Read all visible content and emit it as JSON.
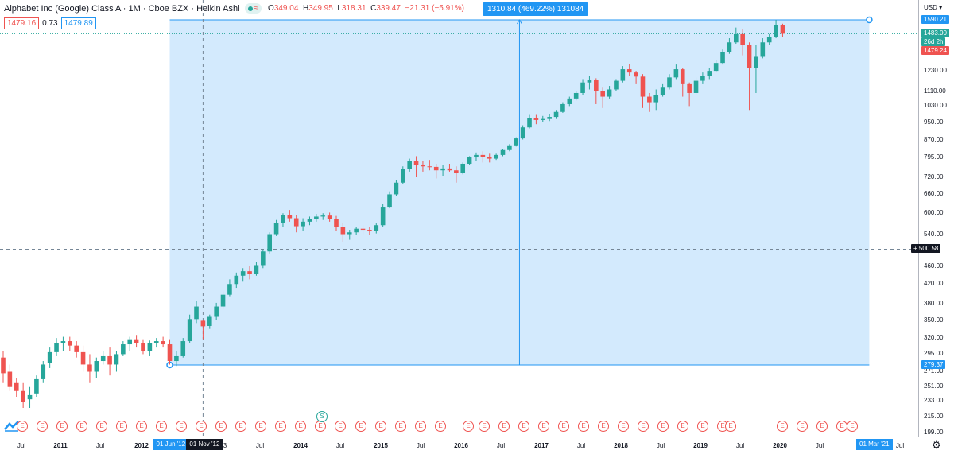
{
  "legend": {
    "symbol": "Alphabet Inc (Google) Class A · 1M · Cboe BZX · Heikin Ashi",
    "wave_icon": "≈",
    "o_label": "O",
    "o_value": "349.04",
    "h_label": "H",
    "h_value": "349.95",
    "l_label": "L",
    "l_value": "318.31",
    "c_label": "C",
    "c_value": "339.47",
    "change": "−21.31 (−5.91%)",
    "bid": "1479.16",
    "spread": "0.73",
    "ask": "1479.89"
  },
  "measure": {
    "label": "1310.84 (469.22%) 131084",
    "from_price": 279.37,
    "to_price": 1590.21,
    "from_date": "01 Jun '12",
    "to_date": "01 Mar '21"
  },
  "crosshair": {
    "price": "500.58",
    "date": "01 Nov '12"
  },
  "price_axis": {
    "currency": "USD",
    "ticks": [
      "1230.00",
      "1110.00",
      "1030.00",
      "950.00",
      "870.00",
      "795.00",
      "720.00",
      "660.00",
      "600.00",
      "540.00",
      "460.00",
      "420.00",
      "380.00",
      "350.00",
      "320.00",
      "295.00",
      "271.00",
      "251.00",
      "233.00",
      "215.00",
      "199.00"
    ],
    "tags": [
      {
        "text": "1590.21",
        "color": "#2196f3"
      },
      {
        "text": "1483.00",
        "color": "#26a69a"
      },
      {
        "text": "26d 2h",
        "color": "#26a69a"
      },
      {
        "text": "1479.24",
        "color": "#ef5350"
      },
      {
        "text": "279.37",
        "color": "#2196f3"
      }
    ]
  },
  "time_axis": {
    "labels": [
      {
        "t": "Jul",
        "year": false
      },
      {
        "t": "2011",
        "year": true
      },
      {
        "t": "Jul",
        "year": false
      },
      {
        "t": "2012",
        "year": true
      },
      {
        "t": "3",
        "year": false
      },
      {
        "t": "Jul",
        "year": false
      },
      {
        "t": "2014",
        "year": true
      },
      {
        "t": "Jul",
        "year": false
      },
      {
        "t": "2015",
        "year": true
      },
      {
        "t": "Jul",
        "year": false
      },
      {
        "t": "2016",
        "year": true
      },
      {
        "t": "Jul",
        "year": false
      },
      {
        "t": "2017",
        "year": true
      },
      {
        "t": "Jul",
        "year": false
      },
      {
        "t": "2018",
        "year": true
      },
      {
        "t": "Jul",
        "year": false
      },
      {
        "t": "2019",
        "year": true
      },
      {
        "t": "Jul",
        "year": false
      },
      {
        "t": "2020",
        "year": true
      },
      {
        "t": "Jul",
        "year": false
      },
      {
        "t": "2",
        "year": false
      },
      {
        "t": "Jul",
        "year": false
      }
    ]
  },
  "events": [
    "E",
    "E",
    "E",
    "E",
    "E",
    "E",
    "E",
    "E",
    "E",
    "E",
    "E",
    "E",
    "E",
    "E",
    "E",
    "E",
    "E",
    "S",
    "E",
    "E",
    "E",
    "E",
    "E",
    "E",
    "E",
    "E",
    "E",
    "E",
    "E",
    "E",
    "E",
    "E",
    "E",
    "E",
    "E",
    "E",
    "E",
    "E",
    "E",
    "E",
    "E",
    "E",
    "E"
  ],
  "colors": {
    "up": "#26a69a",
    "down": "#ef5350",
    "measure": "#2196f3",
    "measure_fill": "rgba(33,150,243,0.2)"
  },
  "icons": {
    "logo": "tradingview-logo-icon",
    "settings": "gear-icon"
  },
  "chart_data": {
    "type": "candlestick",
    "style": "Heikin Ashi",
    "interval": "1M",
    "y_scale": "log",
    "ylim": [
      199,
      1650
    ],
    "x_start": "2010-06",
    "months": [
      {
        "o": 290,
        "h": 300,
        "l": 255,
        "c": 268
      },
      {
        "o": 270,
        "h": 280,
        "l": 245,
        "c": 250
      },
      {
        "o": 255,
        "h": 262,
        "l": 238,
        "c": 245
      },
      {
        "o": 245,
        "h": 255,
        "l": 225,
        "c": 232
      },
      {
        "o": 235,
        "h": 250,
        "l": 225,
        "c": 240
      },
      {
        "o": 242,
        "h": 265,
        "l": 238,
        "c": 260
      },
      {
        "o": 260,
        "h": 285,
        "l": 255,
        "c": 280
      },
      {
        "o": 282,
        "h": 305,
        "l": 275,
        "c": 298
      },
      {
        "o": 298,
        "h": 320,
        "l": 292,
        "c": 312
      },
      {
        "o": 312,
        "h": 322,
        "l": 300,
        "c": 315
      },
      {
        "o": 315,
        "h": 322,
        "l": 300,
        "c": 308
      },
      {
        "o": 308,
        "h": 315,
        "l": 290,
        "c": 298
      },
      {
        "o": 298,
        "h": 308,
        "l": 270,
        "c": 280
      },
      {
        "o": 280,
        "h": 295,
        "l": 255,
        "c": 270
      },
      {
        "o": 270,
        "h": 290,
        "l": 262,
        "c": 285
      },
      {
        "o": 285,
        "h": 300,
        "l": 280,
        "c": 292
      },
      {
        "o": 292,
        "h": 305,
        "l": 265,
        "c": 280
      },
      {
        "o": 280,
        "h": 300,
        "l": 270,
        "c": 295
      },
      {
        "o": 295,
        "h": 315,
        "l": 292,
        "c": 310
      },
      {
        "o": 310,
        "h": 322,
        "l": 300,
        "c": 318
      },
      {
        "o": 318,
        "h": 325,
        "l": 305,
        "c": 312
      },
      {
        "o": 312,
        "h": 318,
        "l": 295,
        "c": 300
      },
      {
        "o": 300,
        "h": 316,
        "l": 292,
        "c": 312
      },
      {
        "o": 312,
        "h": 320,
        "l": 305,
        "c": 315
      },
      {
        "o": 315,
        "h": 322,
        "l": 305,
        "c": 310
      },
      {
        "o": 310,
        "h": 318,
        "l": 280,
        "c": 285
      },
      {
        "o": 285,
        "h": 300,
        "l": 278,
        "c": 292
      },
      {
        "o": 292,
        "h": 320,
        "l": 290,
        "c": 315
      },
      {
        "o": 315,
        "h": 360,
        "l": 312,
        "c": 352
      },
      {
        "o": 352,
        "h": 385,
        "l": 345,
        "c": 375
      },
      {
        "o": 349.04,
        "h": 349.95,
        "l": 318.31,
        "c": 339.47
      },
      {
        "o": 340,
        "h": 360,
        "l": 335,
        "c": 356
      },
      {
        "o": 356,
        "h": 382,
        "l": 350,
        "c": 375
      },
      {
        "o": 375,
        "h": 405,
        "l": 370,
        "c": 398
      },
      {
        "o": 398,
        "h": 430,
        "l": 395,
        "c": 420
      },
      {
        "o": 420,
        "h": 445,
        "l": 412,
        "c": 438
      },
      {
        "o": 438,
        "h": 455,
        "l": 425,
        "c": 448
      },
      {
        "o": 448,
        "h": 460,
        "l": 430,
        "c": 442
      },
      {
        "o": 442,
        "h": 470,
        "l": 438,
        "c": 462
      },
      {
        "o": 462,
        "h": 500,
        "l": 455,
        "c": 495
      },
      {
        "o": 495,
        "h": 545,
        "l": 490,
        "c": 540
      },
      {
        "o": 540,
        "h": 580,
        "l": 535,
        "c": 572
      },
      {
        "o": 572,
        "h": 600,
        "l": 560,
        "c": 595
      },
      {
        "o": 595,
        "h": 610,
        "l": 575,
        "c": 585
      },
      {
        "o": 585,
        "h": 595,
        "l": 545,
        "c": 562
      },
      {
        "o": 562,
        "h": 585,
        "l": 550,
        "c": 575
      },
      {
        "o": 575,
        "h": 590,
        "l": 565,
        "c": 582
      },
      {
        "o": 582,
        "h": 598,
        "l": 575,
        "c": 590
      },
      {
        "o": 590,
        "h": 600,
        "l": 580,
        "c": 593
      },
      {
        "o": 593,
        "h": 602,
        "l": 575,
        "c": 582
      },
      {
        "o": 582,
        "h": 592,
        "l": 548,
        "c": 560
      },
      {
        "o": 560,
        "h": 572,
        "l": 520,
        "c": 540
      },
      {
        "o": 540,
        "h": 552,
        "l": 525,
        "c": 545
      },
      {
        "o": 545,
        "h": 560,
        "l": 538,
        "c": 555
      },
      {
        "o": 555,
        "h": 565,
        "l": 540,
        "c": 552
      },
      {
        "o": 552,
        "h": 560,
        "l": 538,
        "c": 548
      },
      {
        "o": 548,
        "h": 570,
        "l": 542,
        "c": 565
      },
      {
        "o": 565,
        "h": 630,
        "l": 560,
        "c": 620
      },
      {
        "o": 620,
        "h": 670,
        "l": 615,
        "c": 660
      },
      {
        "o": 660,
        "h": 710,
        "l": 655,
        "c": 700
      },
      {
        "o": 700,
        "h": 760,
        "l": 695,
        "c": 750
      },
      {
        "o": 750,
        "h": 790,
        "l": 740,
        "c": 780
      },
      {
        "o": 780,
        "h": 800,
        "l": 720,
        "c": 765
      },
      {
        "o": 765,
        "h": 780,
        "l": 740,
        "c": 760
      },
      {
        "o": 760,
        "h": 785,
        "l": 745,
        "c": 758
      },
      {
        "o": 758,
        "h": 770,
        "l": 715,
        "c": 745
      },
      {
        "o": 745,
        "h": 765,
        "l": 725,
        "c": 752
      },
      {
        "o": 752,
        "h": 770,
        "l": 740,
        "c": 745
      },
      {
        "o": 745,
        "h": 760,
        "l": 700,
        "c": 735
      },
      {
        "o": 735,
        "h": 775,
        "l": 730,
        "c": 770
      },
      {
        "o": 770,
        "h": 800,
        "l": 765,
        "c": 795
      },
      {
        "o": 795,
        "h": 815,
        "l": 780,
        "c": 805
      },
      {
        "o": 805,
        "h": 820,
        "l": 775,
        "c": 798
      },
      {
        "o": 798,
        "h": 810,
        "l": 775,
        "c": 790
      },
      {
        "o": 790,
        "h": 810,
        "l": 785,
        "c": 805
      },
      {
        "o": 805,
        "h": 830,
        "l": 800,
        "c": 825
      },
      {
        "o": 825,
        "h": 850,
        "l": 820,
        "c": 845
      },
      {
        "o": 845,
        "h": 880,
        "l": 840,
        "c": 875
      },
      {
        "o": 875,
        "h": 935,
        "l": 870,
        "c": 925
      },
      {
        "o": 925,
        "h": 985,
        "l": 920,
        "c": 970
      },
      {
        "o": 970,
        "h": 985,
        "l": 940,
        "c": 960
      },
      {
        "o": 960,
        "h": 980,
        "l": 950,
        "c": 965
      },
      {
        "o": 965,
        "h": 990,
        "l": 955,
        "c": 975
      },
      {
        "o": 975,
        "h": 1010,
        "l": 965,
        "c": 1000
      },
      {
        "o": 1000,
        "h": 1050,
        "l": 995,
        "c": 1040
      },
      {
        "o": 1040,
        "h": 1080,
        "l": 1030,
        "c": 1070
      },
      {
        "o": 1070,
        "h": 1110,
        "l": 1060,
        "c": 1100
      },
      {
        "o": 1100,
        "h": 1180,
        "l": 1090,
        "c": 1160
      },
      {
        "o": 1160,
        "h": 1200,
        "l": 1120,
        "c": 1175
      },
      {
        "o": 1175,
        "h": 1185,
        "l": 1040,
        "c": 1110
      },
      {
        "o": 1110,
        "h": 1130,
        "l": 1020,
        "c": 1080
      },
      {
        "o": 1080,
        "h": 1140,
        "l": 1070,
        "c": 1120
      },
      {
        "o": 1120,
        "h": 1180,
        "l": 1110,
        "c": 1170
      },
      {
        "o": 1170,
        "h": 1260,
        "l": 1160,
        "c": 1240
      },
      {
        "o": 1240,
        "h": 1275,
        "l": 1200,
        "c": 1220
      },
      {
        "o": 1220,
        "h": 1230,
        "l": 1150,
        "c": 1195
      },
      {
        "o": 1195,
        "h": 1210,
        "l": 1020,
        "c": 1080
      },
      {
        "o": 1080,
        "h": 1100,
        "l": 1000,
        "c": 1050
      },
      {
        "o": 1050,
        "h": 1120,
        "l": 1010,
        "c": 1090
      },
      {
        "o": 1090,
        "h": 1150,
        "l": 1080,
        "c": 1130
      },
      {
        "o": 1130,
        "h": 1210,
        "l": 1120,
        "c": 1190
      },
      {
        "o": 1190,
        "h": 1270,
        "l": 1180,
        "c": 1240
      },
      {
        "o": 1240,
        "h": 1250,
        "l": 1080,
        "c": 1150
      },
      {
        "o": 1150,
        "h": 1160,
        "l": 1030,
        "c": 1100
      },
      {
        "o": 1100,
        "h": 1190,
        "l": 1090,
        "c": 1170
      },
      {
        "o": 1170,
        "h": 1220,
        "l": 1150,
        "c": 1200
      },
      {
        "o": 1200,
        "h": 1250,
        "l": 1180,
        "c": 1230
      },
      {
        "o": 1230,
        "h": 1300,
        "l": 1220,
        "c": 1280
      },
      {
        "o": 1280,
        "h": 1370,
        "l": 1270,
        "c": 1350
      },
      {
        "o": 1350,
        "h": 1450,
        "l": 1340,
        "c": 1420
      },
      {
        "o": 1420,
        "h": 1530,
        "l": 1410,
        "c": 1480
      },
      {
        "o": 1480,
        "h": 1520,
        "l": 1330,
        "c": 1400
      },
      {
        "o": 1400,
        "h": 1420,
        "l": 1010,
        "c": 1250
      },
      {
        "o": 1250,
        "h": 1400,
        "l": 1100,
        "c": 1320
      },
      {
        "o": 1320,
        "h": 1450,
        "l": 1310,
        "c": 1420
      },
      {
        "o": 1420,
        "h": 1480,
        "l": 1400,
        "c": 1460
      },
      {
        "o": 1460,
        "h": 1590,
        "l": 1450,
        "c": 1550
      },
      {
        "o": 1550,
        "h": 1560,
        "l": 1460,
        "c": 1483
      }
    ]
  }
}
